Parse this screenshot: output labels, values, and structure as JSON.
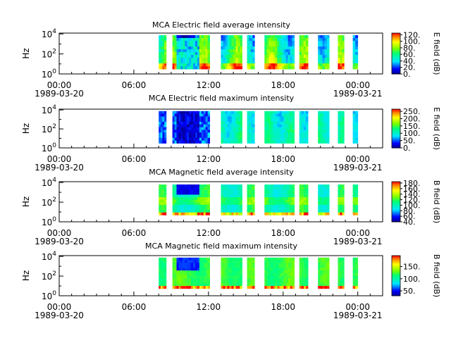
{
  "chart_data": [
    {
      "type": "heatmap",
      "title": "MCA  Electric field average intensity",
      "ylabel": "Hz",
      "colorbar_label": "E field (dB)",
      "colorbar_range": [
        0,
        125
      ],
      "colorbar_ticks": [
        "0.",
        "20.",
        "40.",
        "60.",
        "80.",
        "100.",
        "120."
      ],
      "colorbar_values": [
        0,
        20,
        40,
        60,
        80,
        100,
        120
      ],
      "y_ticks": [
        {
          "base": "10",
          "exp": "0"
        },
        {
          "base": "10",
          "exp": "2"
        },
        {
          "base": "10",
          "exp": "4"
        }
      ],
      "x_ticks": [
        {
          "time": "00:00",
          "date": "1989-03-20"
        },
        {
          "time": "06:00",
          "date": ""
        },
        {
          "time": "12:00",
          "date": ""
        },
        {
          "time": "18:00",
          "date": ""
        },
        {
          "time": "00:00",
          "date": "1989-03-21"
        }
      ],
      "data_segments_hours": [
        [
          8.0,
          8.6
        ],
        [
          9.1,
          12.1
        ],
        [
          13.0,
          14.7
        ],
        [
          15.1,
          15.7
        ],
        [
          16.5,
          18.9
        ],
        [
          19.3,
          20.0
        ],
        [
          20.8,
          21.7
        ],
        [
          22.4,
          22.9
        ],
        [
          23.6,
          24.0
        ]
      ],
      "style": "avg"
    },
    {
      "type": "heatmap",
      "title": "MCA  Electric field maximum intensity",
      "ylabel": "Hz",
      "colorbar_label": "E field (dB)",
      "colorbar_range": [
        0,
        265
      ],
      "colorbar_ticks": [
        "0.",
        "50.",
        "100.",
        "150.",
        "200.",
        "250."
      ],
      "colorbar_values": [
        0,
        50,
        100,
        150,
        200,
        250
      ],
      "y_ticks": [
        {
          "base": "10",
          "exp": "0"
        },
        {
          "base": "10",
          "exp": "2"
        },
        {
          "base": "10",
          "exp": "4"
        }
      ],
      "x_ticks": [
        {
          "time": "00:00",
          "date": "1989-03-20"
        },
        {
          "time": "06:00",
          "date": ""
        },
        {
          "time": "12:00",
          "date": ""
        },
        {
          "time": "18:00",
          "date": ""
        },
        {
          "time": "00:00",
          "date": "1989-03-21"
        }
      ],
      "data_segments_hours": [
        [
          8.0,
          8.6
        ],
        [
          9.1,
          12.1
        ],
        [
          13.0,
          14.7
        ],
        [
          15.1,
          15.7
        ],
        [
          16.5,
          18.9
        ],
        [
          19.3,
          20.0
        ],
        [
          20.8,
          21.7
        ],
        [
          22.4,
          22.9
        ],
        [
          23.6,
          24.0
        ]
      ],
      "style": "emax"
    },
    {
      "type": "heatmap",
      "title": "MCA  Magnetic field average intensity",
      "ylabel": "Hz",
      "colorbar_label": "B field (dB)",
      "colorbar_range": [
        40,
        185
      ],
      "colorbar_ticks": [
        "40.",
        "60.",
        "80.",
        "100.",
        "120.",
        "140.",
        "160.",
        "180."
      ],
      "colorbar_values": [
        40,
        60,
        80,
        100,
        120,
        140,
        160,
        180
      ],
      "y_ticks": [
        {
          "base": "10",
          "exp": "0"
        },
        {
          "base": "10",
          "exp": "2"
        },
        {
          "base": "10",
          "exp": "4"
        }
      ],
      "x_ticks": [
        {
          "time": "00:00",
          "date": "1989-03-20"
        },
        {
          "time": "06:00",
          "date": ""
        },
        {
          "time": "12:00",
          "date": ""
        },
        {
          "time": "18:00",
          "date": ""
        },
        {
          "time": "00:00",
          "date": "1989-03-21"
        }
      ],
      "data_segments_hours": [
        [
          8.0,
          8.6
        ],
        [
          9.1,
          12.1
        ],
        [
          13.0,
          14.7
        ],
        [
          15.1,
          15.7
        ],
        [
          16.5,
          18.9
        ],
        [
          19.3,
          20.0
        ],
        [
          20.8,
          21.7
        ],
        [
          22.4,
          22.9
        ],
        [
          23.6,
          24.0
        ]
      ],
      "style": "bavg"
    },
    {
      "type": "heatmap",
      "title": "MCA  Magnetic field maximum intensity",
      "ylabel": "Hz",
      "colorbar_label": "B field (dB)",
      "colorbar_range": [
        30,
        195
      ],
      "colorbar_ticks": [
        "50.",
        "100.",
        "150."
      ],
      "colorbar_values": [
        50,
        100,
        150
      ],
      "y_ticks": [
        {
          "base": "10",
          "exp": "0"
        },
        {
          "base": "10",
          "exp": "2"
        },
        {
          "base": "10",
          "exp": "4"
        }
      ],
      "x_ticks": [
        {
          "time": "00:00",
          "date": "1989-03-20"
        },
        {
          "time": "06:00",
          "date": ""
        },
        {
          "time": "12:00",
          "date": ""
        },
        {
          "time": "18:00",
          "date": ""
        },
        {
          "time": "00:00",
          "date": "1989-03-21"
        }
      ],
      "data_segments_hours": [
        [
          8.0,
          8.6
        ],
        [
          9.1,
          12.1
        ],
        [
          13.0,
          14.7
        ],
        [
          15.1,
          15.7
        ],
        [
          16.5,
          18.9
        ],
        [
          19.3,
          20.0
        ],
        [
          20.8,
          21.7
        ],
        [
          22.4,
          22.9
        ],
        [
          23.6,
          24.0
        ]
      ],
      "style": "bmax"
    }
  ]
}
